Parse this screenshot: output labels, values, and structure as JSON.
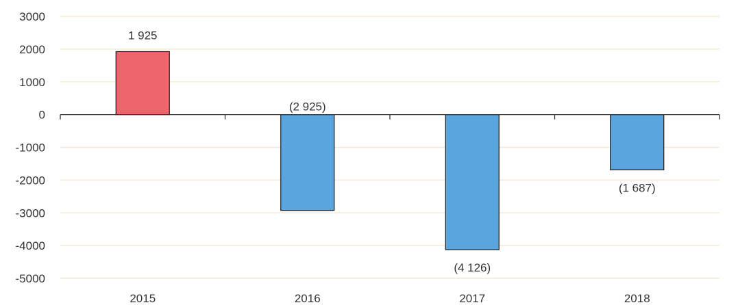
{
  "chart_data": {
    "type": "bar",
    "categories": [
      "2015",
      "2016",
      "2017",
      "2018"
    ],
    "values": [
      1925,
      -2925,
      -4126,
      -1687
    ],
    "data_labels": [
      "1 925",
      "(2 925)",
      "(4 126)",
      "(1 687)"
    ],
    "ylim": [
      -5000,
      3000
    ],
    "y_ticks": [
      3000,
      2000,
      1000,
      0,
      -1000,
      -2000,
      -3000,
      -4000,
      -5000
    ],
    "y_tick_labels": [
      "3000",
      "2000",
      "1000",
      "0",
      "-1000",
      "-2000",
      "-3000",
      "-4000",
      "-5000"
    ],
    "grid": true,
    "legend": "none",
    "colors": {
      "positive": "#f0646c",
      "negative": "#5aa5de",
      "bar_outline": "#1a1a1a",
      "grid": "#f3ebcf",
      "axis": "#333333"
    }
  }
}
